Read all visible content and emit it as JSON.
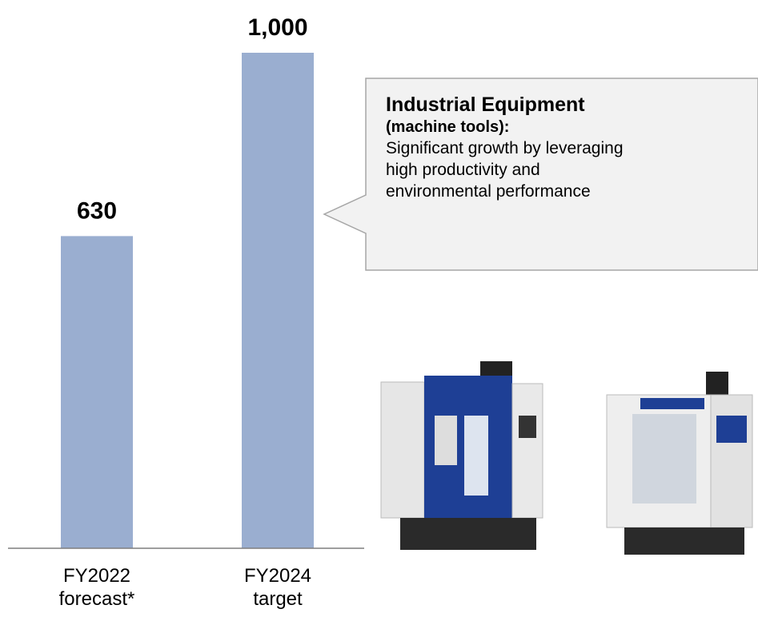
{
  "chart_data": {
    "type": "bar",
    "categories": [
      "FY2022 forecast*",
      "FY2024 target"
    ],
    "values": [
      630,
      1000
    ],
    "value_labels": [
      "630",
      "1,000"
    ],
    "color": "#9aaed0",
    "ylim": [
      0,
      1000
    ],
    "callout": {
      "title": "Industrial Equipment",
      "subtitle": "(machine tools):",
      "text": "Significant growth by leveraging high productivity and environmental performance"
    }
  }
}
